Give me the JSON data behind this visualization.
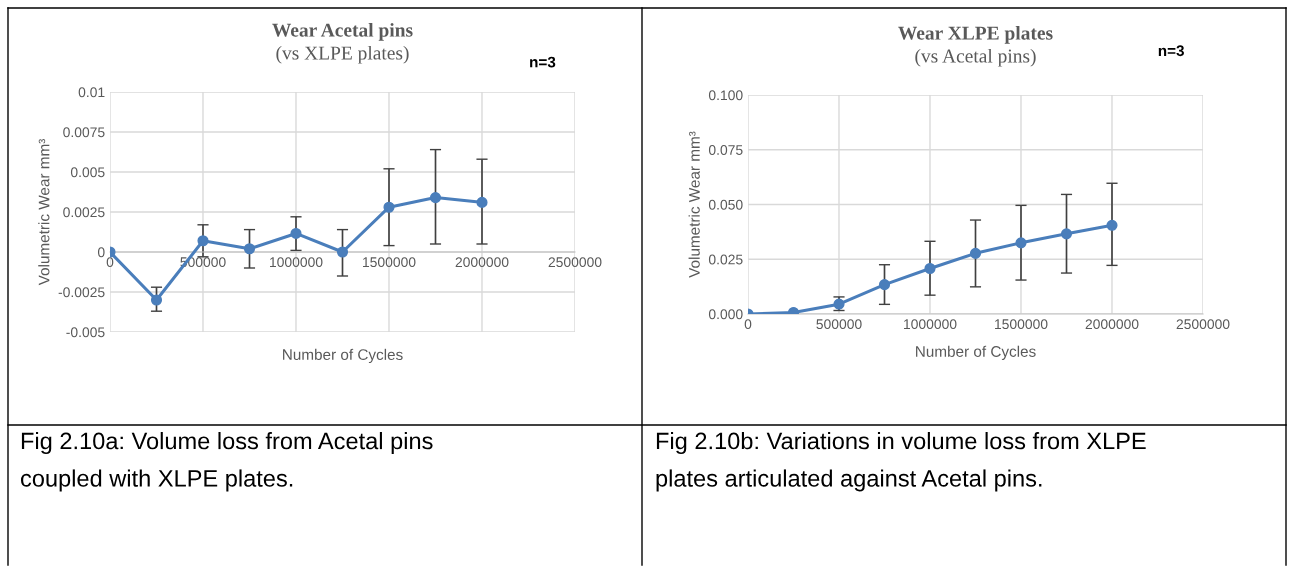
{
  "chart_data": [
    {
      "type": "line",
      "title": "Wear Acetal pins",
      "subtitle": "(vs XLPE plates)",
      "xlabel": "Number of Cycles",
      "ylabel": "Volumetric Wear mm³",
      "x": [
        0,
        250000,
        500000,
        750000,
        1000000,
        1250000,
        1500000,
        1750000,
        2000000
      ],
      "series": [
        {
          "color": "#4a7ebb",
          "values": [
            0,
            -0.003,
            0.0007,
            0.0002,
            0.00116,
            0,
            0.0028,
            0.0034,
            0.0031
          ],
          "errors": [
            null,
            [
              -0.0037,
              -0.0022
            ],
            [
              -0.0003,
              0.0017
            ],
            [
              -0.001,
              0.0014
            ],
            [
              0.0001,
              0.0022
            ],
            [
              -0.0015,
              0.0014
            ],
            [
              0.0004,
              0.0052
            ],
            [
              0.0005,
              0.0064
            ],
            [
              0.0005,
              0.0058
            ]
          ]
        }
      ],
      "xlim": [
        0,
        2500000
      ],
      "xticks": [
        0,
        500000,
        1000000,
        1500000,
        2000000,
        2500000
      ],
      "ylim": [
        -0.005,
        0.01
      ],
      "yticks": [
        -0.005,
        -0.0025,
        0,
        0.0025,
        0.005,
        0.0075,
        0.01
      ],
      "grid": true,
      "marker": "circle",
      "line_style": "solid",
      "legend": false,
      "annotations": [
        "n=3",
        "Fig 2.10a: Volume loss from Acetal pins\ncoupled with XLPE plates."
      ]
    },
    {
      "type": "line",
      "title": "Wear XLPE plates",
      "subtitle": "(vs Acetal pins)",
      "xlabel": "Number of Cycles",
      "ylabel": "Volumetric Wear mm³",
      "x": [
        0,
        250000,
        500000,
        750000,
        1000000,
        1250000,
        1500000,
        1750000,
        2000000
      ],
      "series": [
        {
          "color": "#4a7ebb",
          "values": [
            0,
            0.0007,
            0.0045,
            0.0134,
            0.0208,
            0.0277,
            0.0325,
            0.0366,
            0.0405
          ],
          "errors": [
            null,
            null,
            [
              0.0016,
              0.0078
            ],
            [
              0.0044,
              0.0225
            ],
            [
              0.0086,
              0.0332
            ],
            [
              0.0124,
              0.0429
            ],
            [
              0.0155,
              0.0496
            ],
            [
              0.0187,
              0.0546
            ],
            [
              0.0222,
              0.0597
            ]
          ]
        }
      ],
      "xlim": [
        0,
        2500000
      ],
      "xticks": [
        0,
        500000,
        1000000,
        1500000,
        2000000,
        2500000
      ],
      "ylim": [
        0,
        0.1
      ],
      "yticks": [
        {
          "value": 0,
          "label": "0.000"
        },
        {
          "value": 0.025,
          "label": "0.025"
        },
        {
          "value": 0.05,
          "label": "0.050"
        },
        {
          "value": 0.075,
          "label": "0.075"
        },
        {
          "value": 0.1,
          "label": "0.100"
        }
      ],
      "grid": true,
      "marker": "circle",
      "line_style": "solid",
      "legend": false,
      "annotations": [
        "n=3",
        "Fig 2.10b: Variations in volume loss from XLPE\nplates articulated against Acetal pins."
      ]
    }
  ]
}
